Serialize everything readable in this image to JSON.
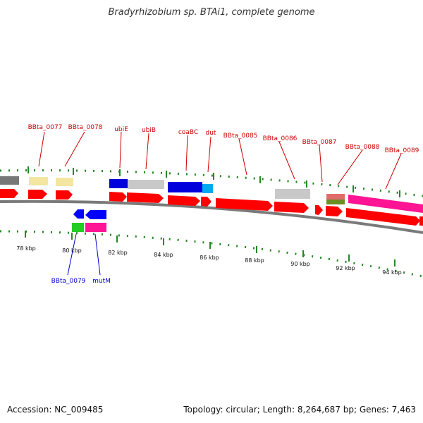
{
  "title": "Bradyrhizobium sp. BTAi1, complete genome",
  "footer": {
    "accession": "Accession: NC_009485",
    "summary": "Topology: circular; Length: 8,264,687 bp; Genes: 7,463"
  },
  "colors": {
    "backbone": "#7a7a7a",
    "forward_label": "#cc0000",
    "reverse_label": "#0000cc",
    "ticks": "#228822",
    "cds": "#ff0000"
  },
  "axis": {
    "unit": "kbp",
    "labels": [
      "78 kbp",
      "80 kbp",
      "82 kbp",
      "84 kbp",
      "86 kbp",
      "88 kbp",
      "90 kbp",
      "92 kbp",
      "94 kbp"
    ]
  },
  "genes_forward": [
    {
      "name": "BBta_0077",
      "color": "#f2e6a0"
    },
    {
      "name": "BBta_0078",
      "color": "#f2e6a0"
    },
    {
      "name": "ubiE",
      "color": "#0000dd"
    },
    {
      "name": "ubiB",
      "color": "#c8c8c8"
    },
    {
      "name": "coaBC",
      "color": "#0000dd"
    },
    {
      "name": "dut",
      "color": "#00aaee"
    },
    {
      "name": "BBta_0085",
      "color": "#ff0000"
    },
    {
      "name": "BBta_0086",
      "color": "#c8c8c8"
    },
    {
      "name": "BBta_0087",
      "color": "#e06b6b"
    },
    {
      "name": "BBta_0088",
      "color": "#ff0000"
    },
    {
      "name": "BBta_0089",
      "color": "#ff1493"
    }
  ],
  "genes_reverse": [
    {
      "name": "BBta_0079",
      "color": "#22cc22"
    },
    {
      "name": "mutM",
      "color": "#ff1493"
    }
  ]
}
